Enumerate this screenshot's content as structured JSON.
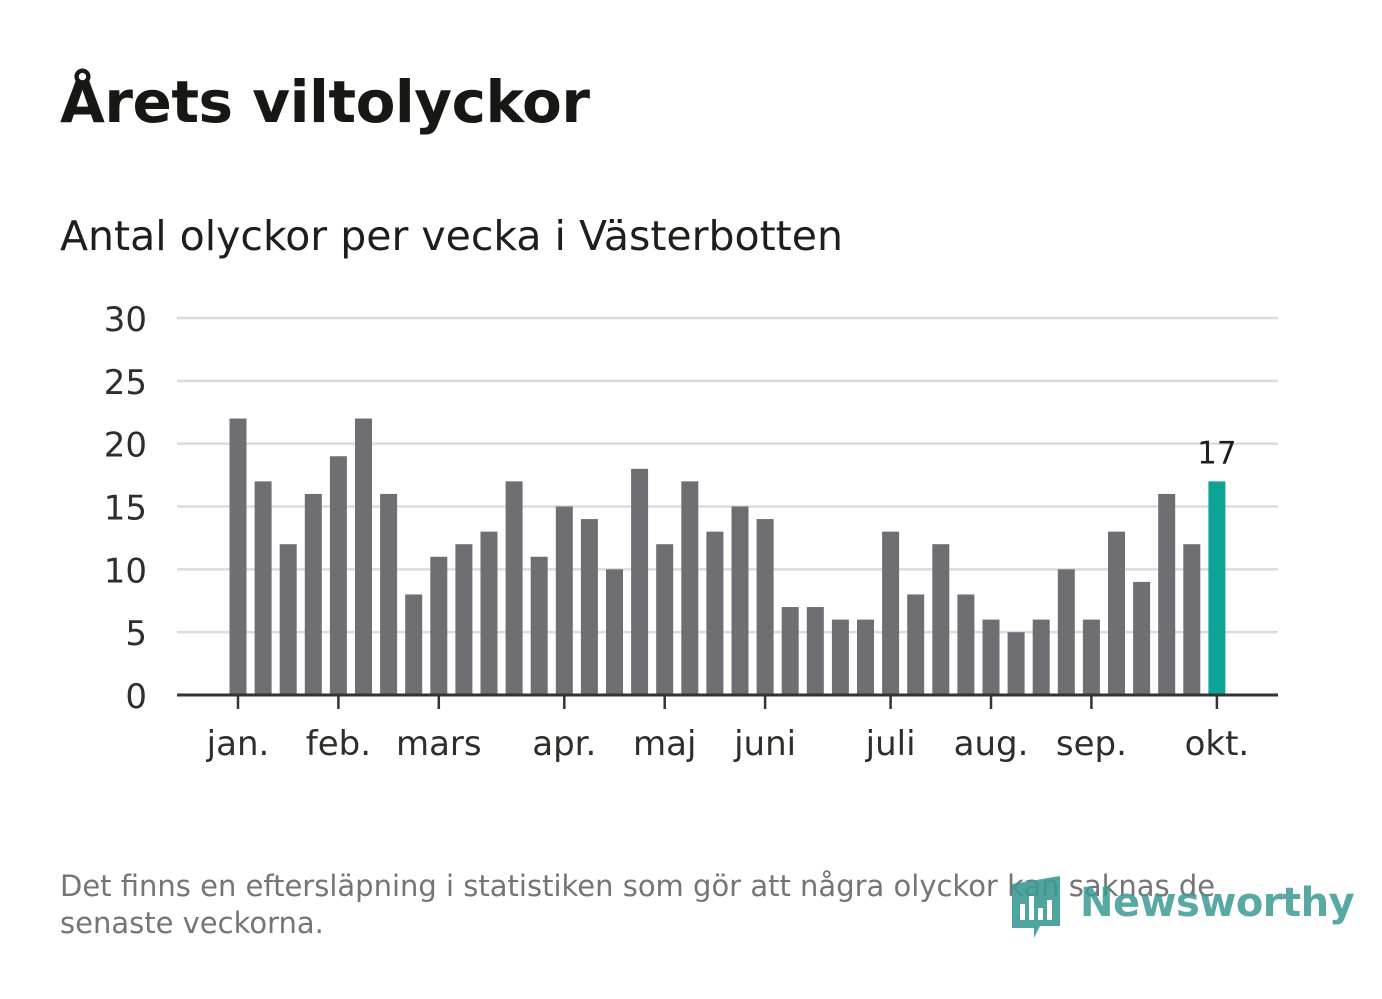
{
  "chart_data": {
    "type": "bar",
    "title": "Årets viltolyckor",
    "subtitle": "Antal olyckor per vecka i Västerbotten",
    "xlabel": "",
    "ylabel": "",
    "ylim": [
      0,
      30
    ],
    "yticks": [
      "0",
      "5",
      "10",
      "15",
      "20",
      "25",
      "30"
    ],
    "ytick_values": [
      0,
      5,
      10,
      15,
      20,
      25,
      30
    ],
    "grid": true,
    "values": [
      22,
      17,
      12,
      16,
      19,
      22,
      16,
      8,
      11,
      12,
      13,
      17,
      11,
      15,
      14,
      10,
      18,
      12,
      17,
      13,
      15,
      14,
      7,
      7,
      6,
      6,
      13,
      8,
      12,
      8,
      6,
      5,
      6,
      10,
      6,
      13,
      9,
      16,
      12,
      17
    ],
    "month_labels": [
      {
        "label": "jan.",
        "week": 0
      },
      {
        "label": "feb.",
        "week": 4
      },
      {
        "label": "mars",
        "week": 8
      },
      {
        "label": "apr.",
        "week": 13
      },
      {
        "label": "maj",
        "week": 17
      },
      {
        "label": "juni",
        "week": 21
      },
      {
        "label": "juli",
        "week": 26
      },
      {
        "label": "aug.",
        "week": 30
      },
      {
        "label": "sep.",
        "week": 34
      },
      {
        "label": "okt.",
        "week": 39
      }
    ],
    "highlight_index": 39,
    "highlight_label": "17",
    "colors": {
      "bar": "#6f6e73",
      "highlight": "#0fa398",
      "grid": "#dcdcdc",
      "axis": "#333333"
    }
  },
  "footnote": "Det finns en eftersläpning i statistiken som gör att några olyckor kan saknas de senaste veckorna.",
  "logo": {
    "text": "Newsworthy",
    "icon": "newsworthy-logo-icon",
    "color": "#3c9a95"
  }
}
